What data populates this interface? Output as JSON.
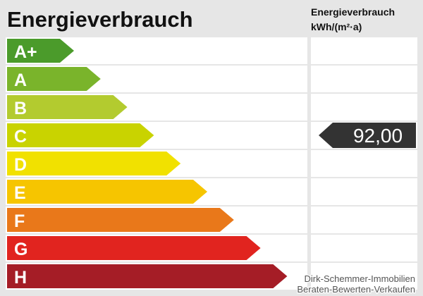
{
  "header": {
    "title": "Energieverbrauch",
    "column_title": "Energieverbrauch",
    "column_unit": "kWh/(m²·a)"
  },
  "classes": [
    {
      "label": "A+",
      "color": "#4b9b2b"
    },
    {
      "label": "A",
      "color": "#7ab42b"
    },
    {
      "label": "B",
      "color": "#b3cb2f"
    },
    {
      "label": "C",
      "color": "#c9d300"
    },
    {
      "label": "D",
      "color": "#f1e100"
    },
    {
      "label": "E",
      "color": "#f6c500"
    },
    {
      "label": "F",
      "color": "#e9781a"
    },
    {
      "label": "G",
      "color": "#e1241f"
    },
    {
      "label": "H",
      "color": "#a51d26"
    }
  ],
  "value": {
    "text": "92,00"
  },
  "watermark": {
    "line1": "Dirk-Schemmer-Immobilien",
    "line2": "Beraten-Bewerten-Verkaufen"
  }
}
